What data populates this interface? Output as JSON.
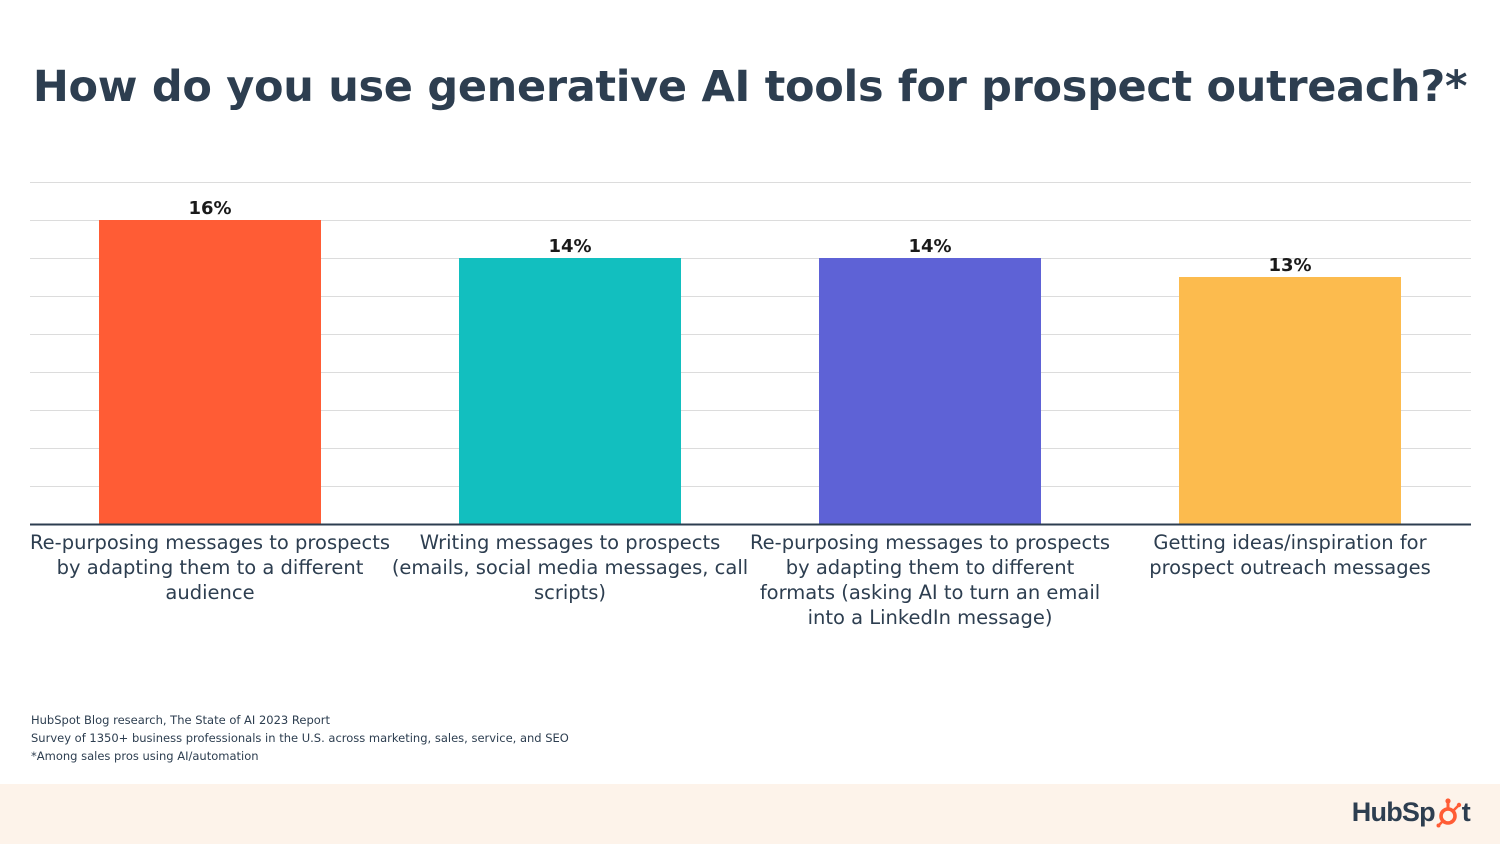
{
  "page": {
    "title": "How do you use generative AI tools for prospect outreach?*",
    "notes": [
      "HubSpot Blog research, The State of AI 2023 Report",
      "Survey of 1350+ business professionals in the U.S. across marketing, sales, service, and SEO",
      "*Among sales pros using AI/automation"
    ],
    "logo": {
      "text_before": "HubSp",
      "text_after": "t",
      "icon": "sprocket-icon"
    }
  },
  "chart_data": {
    "type": "bar",
    "categories": [
      "Re-purposing messages to prospects by adapting them to a different audience",
      "Writing messages to prospects (emails, social media messages, call scripts)",
      "Re-purposing messages to prospects by adapting them to different formats (asking AI to turn an email into a LinkedIn message)",
      "Getting ideas/inspiration for prospect outreach messages"
    ],
    "values": [
      16,
      14,
      14,
      13
    ],
    "data_labels": [
      "16%",
      "14%",
      "14%",
      "13%"
    ],
    "colors": [
      "#ff5c35",
      "#12bfbf",
      "#5e62d6",
      "#fcbb4e"
    ],
    "ylim": [
      0,
      18
    ],
    "grid": true,
    "gridline_step": 2,
    "legend": "none",
    "xlabel": "",
    "ylabel": ""
  }
}
